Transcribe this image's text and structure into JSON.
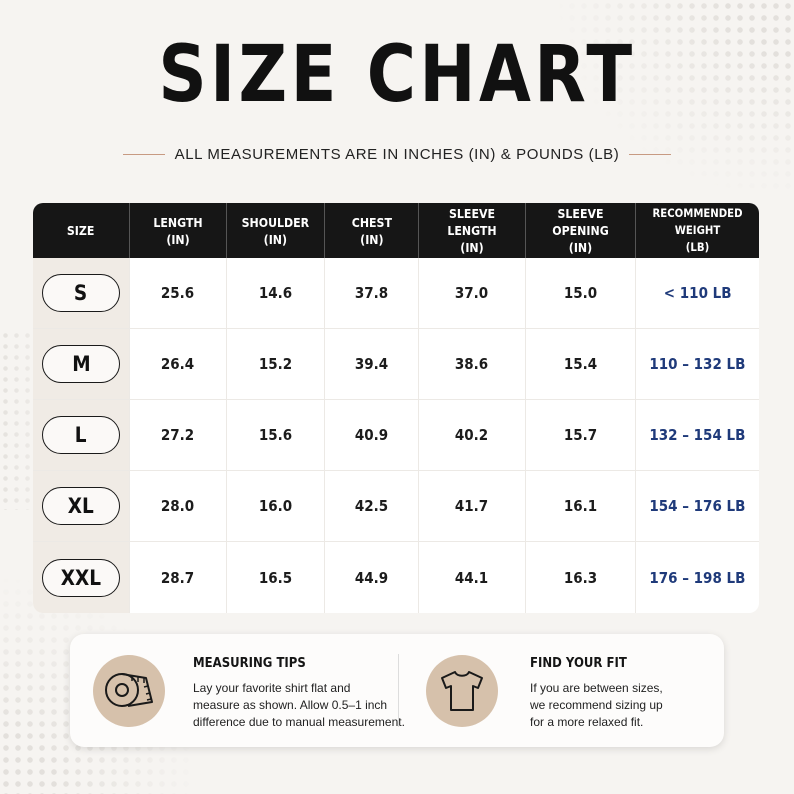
{
  "title": "SIZE CHART",
  "subtitle": "ALL MEASUREMENTS ARE IN INCHES (IN) & POUNDS (LB)",
  "table": {
    "headers": [
      "SIZE",
      "LENGTH\n(IN)",
      "SHOULDER\n(IN)",
      "CHEST\n(IN)",
      "SLEEVE LENGTH\n(IN)",
      "SLEEVE OPENING\n(IN)",
      "RECOMMENDED WEIGHT\n(LB)"
    ],
    "rows": [
      {
        "size": "S",
        "length": "25.6",
        "shoulder": "14.6",
        "chest": "37.8",
        "sleeve_length": "37.0",
        "sleeve_opening": "15.0",
        "weight": "< 110 LB"
      },
      {
        "size": "M",
        "length": "26.4",
        "shoulder": "15.2",
        "chest": "39.4",
        "sleeve_length": "38.6",
        "sleeve_opening": "15.4",
        "weight": "110 – 132 LB"
      },
      {
        "size": "L",
        "length": "27.2",
        "shoulder": "15.6",
        "chest": "40.9",
        "sleeve_length": "40.2",
        "sleeve_opening": "15.7",
        "weight": "132 – 154 LB"
      },
      {
        "size": "XL",
        "length": "28.0",
        "shoulder": "16.0",
        "chest": "42.5",
        "sleeve_length": "41.7",
        "sleeve_opening": "16.1",
        "weight": "154 – 176 LB"
      },
      {
        "size": "XXL",
        "length": "28.7",
        "shoulder": "16.5",
        "chest": "44.9",
        "sleeve_length": "44.1",
        "sleeve_opening": "16.3",
        "weight": "176 – 198 LB"
      }
    ]
  },
  "tips": {
    "measuring": {
      "icon": "measuring-tape-icon",
      "title": "MEASURING TIPS",
      "lines": [
        "Lay your favorite shirt flat and",
        "measure as shown. Allow 0.5–1 inch",
        "difference due to manual measurement."
      ]
    },
    "fit": {
      "icon": "tshirt-icon",
      "title": "FIND YOUR FIT",
      "lines": [
        "If you are between sizes,",
        "we recommend sizing up",
        "for a more relaxed fit."
      ]
    }
  },
  "colors": {
    "background": "#f6f4f1",
    "header_bg": "#161616",
    "weight_text": "#1f3a7a",
    "icon_circle": "#d6c1ab",
    "accent_line": "#c79a82"
  }
}
